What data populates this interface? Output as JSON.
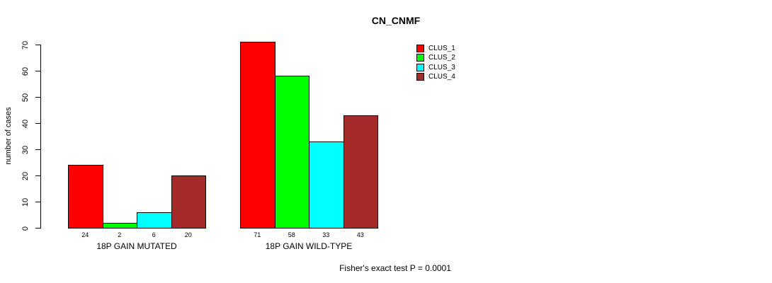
{
  "chart_data": {
    "type": "bar",
    "title": "CN_CNMF",
    "ylabel": "number of cases",
    "xlabel": "",
    "annotation": "Fisher's exact test P = 0.0001",
    "categories": [
      "18P GAIN MUTATED",
      "18P GAIN WILD-TYPE"
    ],
    "series": [
      {
        "name": "CLUS_1",
        "color": "#ff0000",
        "values": [
          24,
          71
        ]
      },
      {
        "name": "CLUS_2",
        "color": "#00ff00",
        "values": [
          2,
          58
        ]
      },
      {
        "name": "CLUS_3",
        "color": "#00ffff",
        "values": [
          6,
          33
        ]
      },
      {
        "name": "CLUS_4",
        "color": "#a52a2a",
        "values": [
          20,
          43
        ]
      }
    ],
    "yticks": [
      0,
      10,
      20,
      30,
      40,
      50,
      60,
      70
    ],
    "ylim": [
      0,
      70
    ],
    "bar_value_labels": true,
    "legend_position": "top-right",
    "grid": false,
    "background": "#ffffff",
    "axis_color": "#000000"
  }
}
